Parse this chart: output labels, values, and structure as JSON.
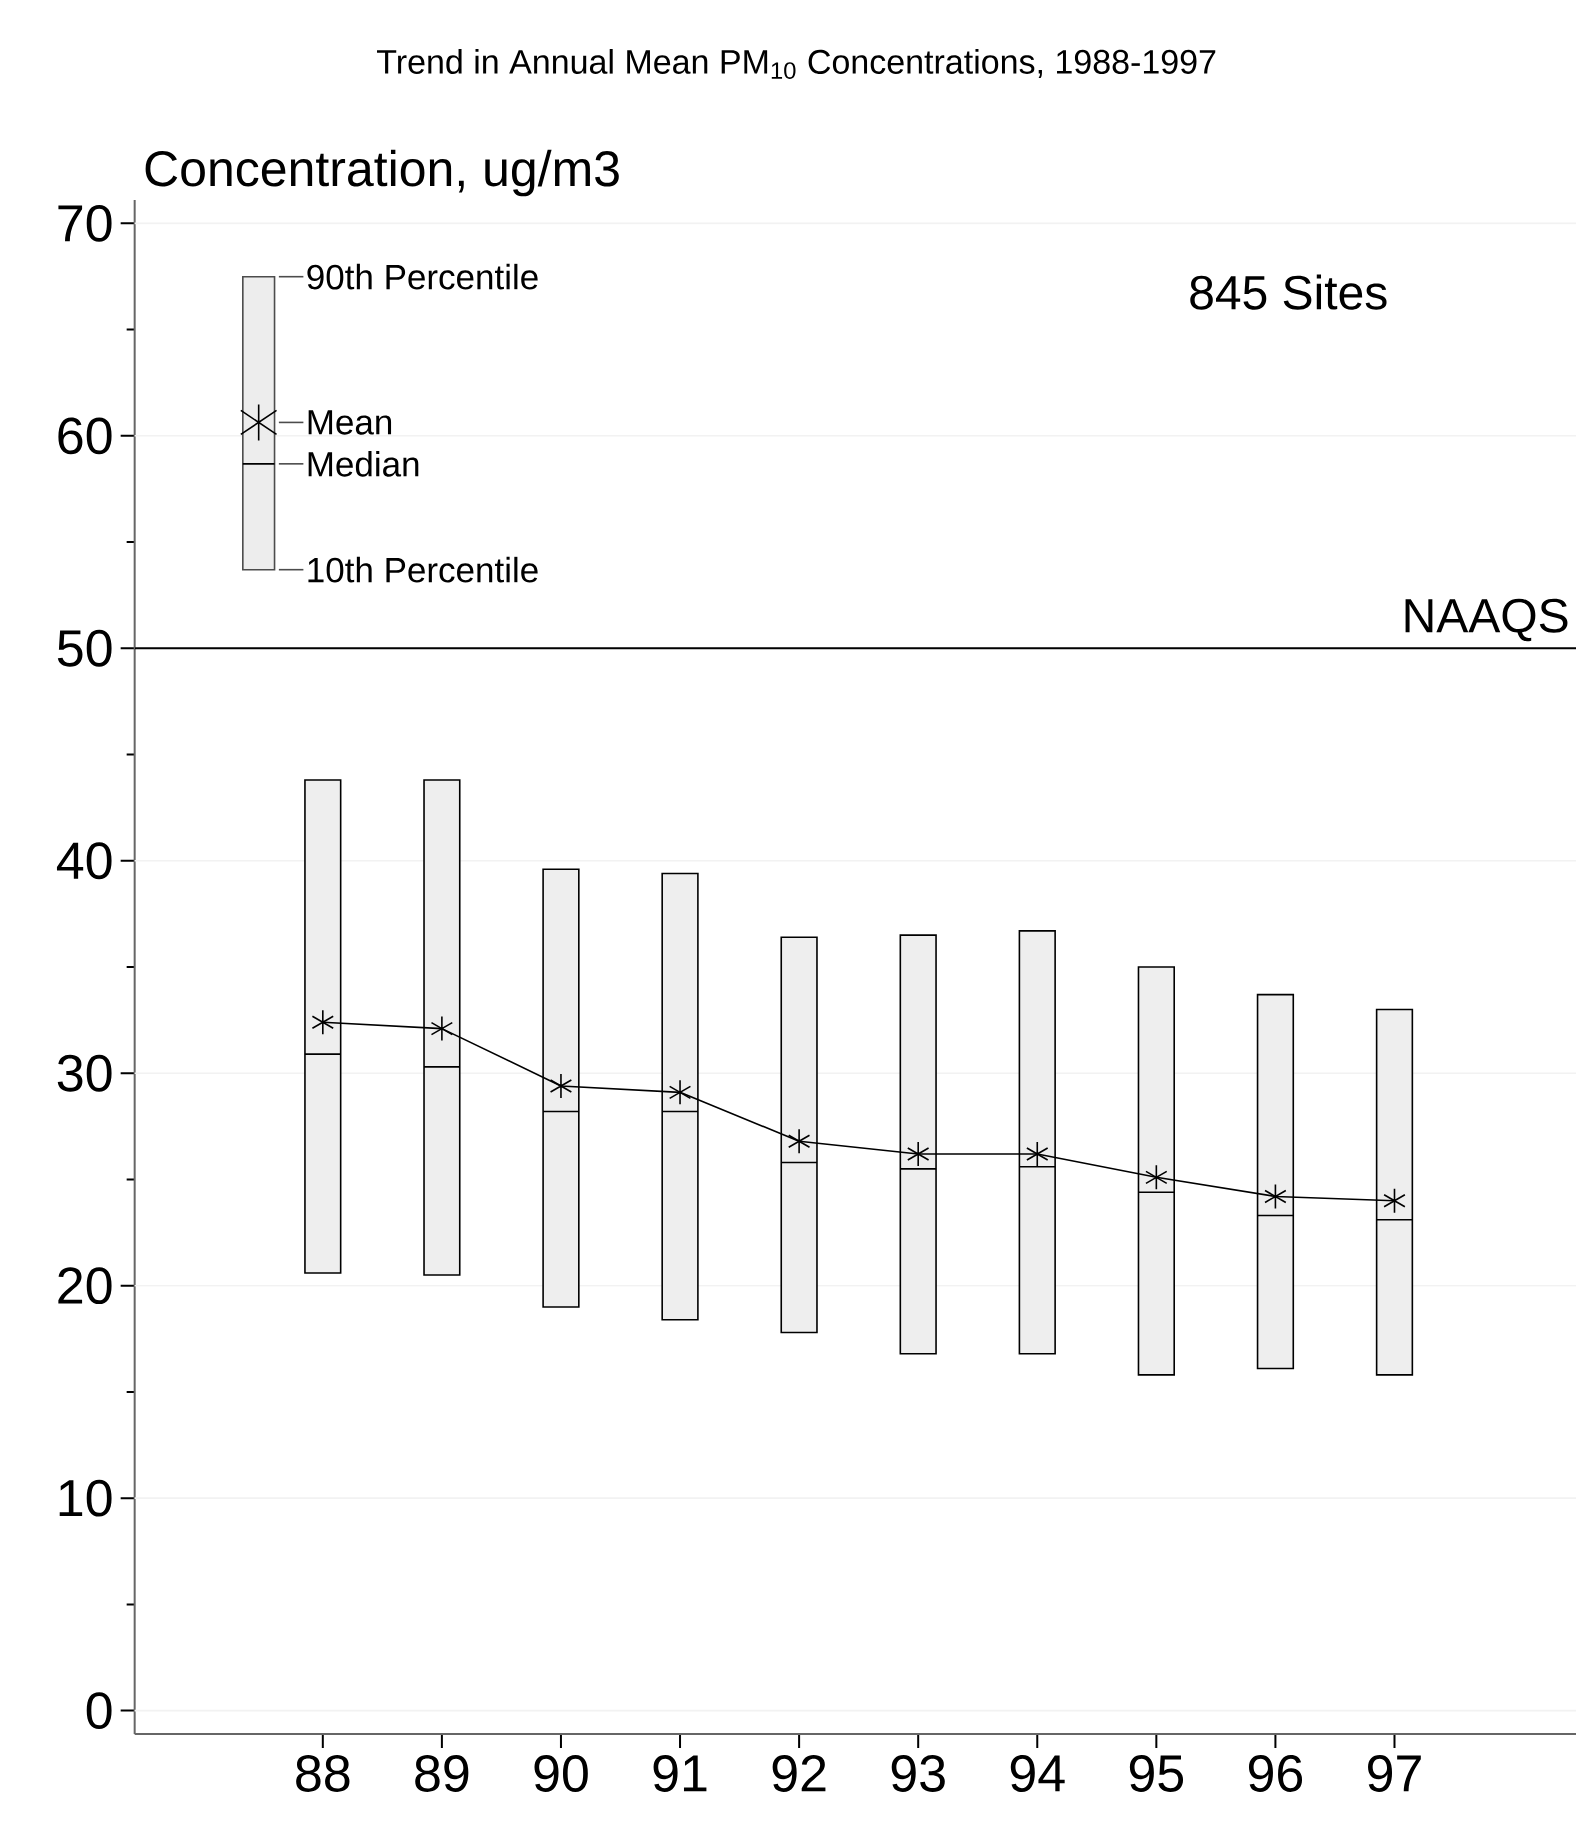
{
  "chart_data": {
    "type": "box",
    "title": "Trend in Annual Mean PM$_{10}$ Concentrations, 1988-1997",
    "ylabel": "Concentration, ug/m3",
    "categories": [
      "88",
      "89",
      "90",
      "91",
      "92",
      "93",
      "94",
      "95",
      "96",
      "97"
    ],
    "series": [
      {
        "color": "#eeeeee",
        "boxes": [
          {
            "low": 20.6,
            "q1": 20.6,
            "median": 30.9,
            "q3": 43.8,
            "high": 43.8
          },
          {
            "low": 20.5,
            "q1": 20.5,
            "median": 30.3,
            "q3": 43.8,
            "high": 43.8
          },
          {
            "low": 19.0,
            "q1": 19.0,
            "median": 28.2,
            "q3": 39.6,
            "high": 39.6
          },
          {
            "low": 18.4,
            "q1": 18.4,
            "median": 28.2,
            "q3": 39.4,
            "high": 39.4
          },
          {
            "low": 17.8,
            "q1": 17.8,
            "median": 25.8,
            "q3": 36.4,
            "high": 36.4
          },
          {
            "low": 16.8,
            "q1": 16.8,
            "median": 25.5,
            "q3": 36.5,
            "high": 36.5
          },
          {
            "low": 16.8,
            "q1": 16.8,
            "median": 25.6,
            "q3": 36.7,
            "high": 36.7
          },
          {
            "low": 15.8,
            "q1": 15.8,
            "median": 24.4,
            "q3": 35.0,
            "high": 35.0
          },
          {
            "low": 16.1,
            "q1": 16.1,
            "median": 23.3,
            "q3": 33.7,
            "high": 33.7
          },
          {
            "low": 15.8,
            "q1": 15.8,
            "median": 23.1,
            "q3": 33.0,
            "high": 33.0
          }
        ]
      },
      {
        "type": "line",
        "color": "#000000",
        "marker": "cross",
        "values": [
          32.4,
          32.1,
          29.4,
          29.1,
          26.8,
          26.2,
          26.2,
          25.1,
          24.2,
          24.0
        ]
      }
    ],
    "ylim": [
      -1.1,
      71.1
    ],
    "yticks": [
      0,
      10,
      20,
      30,
      40,
      50,
      60,
      70
    ],
    "grid": "y",
    "ref_lines": [
      {
        "axis": "y",
        "value": 50,
        "label": "NAAQS",
        "color": "#000000"
      }
    ],
    "annotations": [
      "845 Sites",
      "90th Percentile",
      "Mean",
      "Median",
      "10th Percentile"
    ]
  }
}
